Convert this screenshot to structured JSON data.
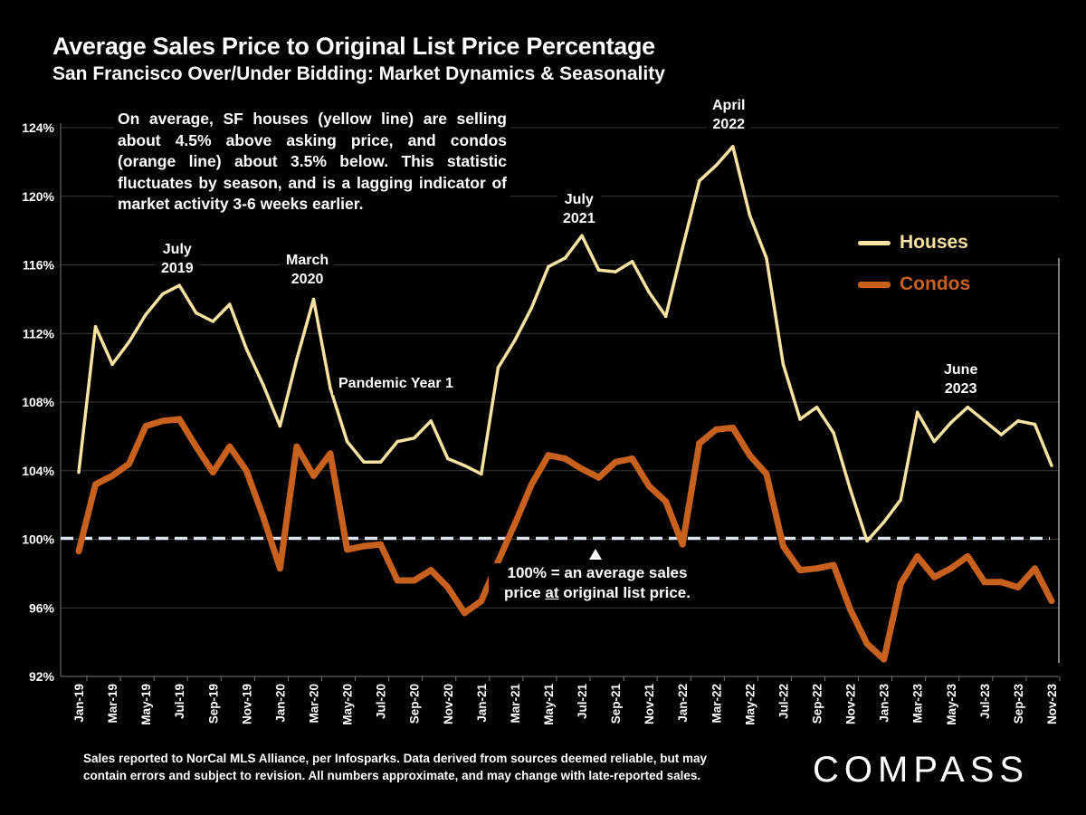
{
  "header": {
    "title": "Average Sales Price to Original List Price Percentage",
    "subtitle": "San Francisco Over/Under Bidding: Market Dynamics & Seasonality"
  },
  "note": "On average, SF houses (yellow line) are selling about 4.5% above asking price, and condos (orange line) about 3.5% below. This statistic fluctuates by season, and is a lagging indicator of market activity 3-6 weeks earlier.",
  "annotations": {
    "july2019": [
      "July",
      "2019"
    ],
    "march2020": [
      "March",
      "2020"
    ],
    "pandemic": "Pandemic Year 1",
    "july2021": [
      "July",
      "2021"
    ],
    "april2022": [
      "April",
      "2022"
    ],
    "june2023": [
      "June",
      "2023"
    ],
    "baseline_line1": "100% = an average sales",
    "baseline_pre": "price ",
    "baseline_at": "at",
    "baseline_post": " original list price."
  },
  "footer": {
    "line1": "Sales reported to NorCal MLS Alliance, per Infosparks. Data derived from sources deemed reliable, but may",
    "line2": "contain errors and subject to revision. All numbers approximate, and may change with late-reported sales."
  },
  "logo": "COMPASS",
  "colors": {
    "houses": "#F9E2A2",
    "condos": "#C8601E",
    "grid": "#3a3a3a",
    "baseline": "#DDE3EE"
  },
  "chart_data": {
    "type": "line",
    "title": "Average Sales Price to Original List Price Percentage",
    "ylabel": "",
    "xlabel": "",
    "ylim": [
      92,
      124
    ],
    "yticks": [
      92,
      96,
      100,
      104,
      108,
      112,
      116,
      120,
      124
    ],
    "ytick_labels": [
      "92%",
      "96%",
      "100%",
      "104%",
      "108%",
      "112%",
      "116%",
      "120%",
      "124%"
    ],
    "grid": true,
    "legend_position": "right",
    "reference_line": 100,
    "x": [
      "Jan-19",
      "Feb-19",
      "Mar-19",
      "Apr-19",
      "May-19",
      "Jun-19",
      "Jul-19",
      "Aug-19",
      "Sep-19",
      "Oct-19",
      "Nov-19",
      "Dec-19",
      "Jan-20",
      "Feb-20",
      "Mar-20",
      "Apr-20",
      "May-20",
      "Jun-20",
      "Jul-20",
      "Aug-20",
      "Sep-20",
      "Oct-20",
      "Nov-20",
      "Dec-20",
      "Jan-21",
      "Feb-21",
      "Mar-21",
      "Apr-21",
      "May-21",
      "Jun-21",
      "Jul-21",
      "Aug-21",
      "Sep-21",
      "Oct-21",
      "Nov-21",
      "Dec-21",
      "Jan-22",
      "Feb-22",
      "Mar-22",
      "Apr-22",
      "May-22",
      "Jun-22",
      "Jul-22",
      "Aug-22",
      "Sep-22",
      "Oct-22",
      "Nov-22",
      "Dec-22",
      "Jan-23",
      "Feb-23",
      "Mar-23",
      "Apr-23",
      "May-23",
      "Jun-23",
      "Jul-23",
      "Aug-23",
      "Sep-23",
      "Oct-23",
      "Nov-23"
    ],
    "xtick_labels": [
      "Jan-19",
      "Mar-19",
      "May-19",
      "Jul-19",
      "Sep-19",
      "Nov-19",
      "Jan-20",
      "Mar-20",
      "May-20",
      "Jul-20",
      "Sep-20",
      "Nov-20",
      "Jan-21",
      "Mar-21",
      "May-21",
      "Jul-21",
      "Sep-21",
      "Nov-21",
      "Jan-22",
      "Mar-22",
      "May-22",
      "Jul-22",
      "Sep-22",
      "Nov-22",
      "Jan-23",
      "Mar-23",
      "May-23",
      "Jul-23",
      "Sep-23",
      "Nov-23"
    ],
    "series": [
      {
        "name": "Houses",
        "values": [
          103.9,
          112.4,
          110.2,
          111.5,
          113.1,
          114.3,
          114.8,
          113.2,
          112.7,
          113.7,
          111.1,
          109.0,
          106.6,
          110.5,
          114.0,
          108.8,
          105.7,
          104.5,
          104.5,
          105.7,
          105.9,
          106.9,
          104.7,
          104.3,
          103.8,
          110.0,
          111.6,
          113.5,
          115.9,
          116.4,
          117.7,
          115.7,
          115.6,
          116.2,
          114.4,
          113.0,
          117.0,
          120.9,
          121.8,
          122.9,
          118.9,
          116.4,
          110.2,
          107.0,
          107.7,
          106.2,
          102.9,
          99.9,
          101.0,
          102.3,
          107.4,
          105.7,
          106.8,
          107.7,
          106.9,
          106.1,
          106.9,
          106.7,
          104.3
        ]
      },
      {
        "name": "Condos",
        "values": [
          99.3,
          103.2,
          103.7,
          104.4,
          106.6,
          106.9,
          107.0,
          105.4,
          103.9,
          105.4,
          104.0,
          101.3,
          98.3,
          105.4,
          103.7,
          105.0,
          99.4,
          99.6,
          99.7,
          97.6,
          97.6,
          98.2,
          97.2,
          95.7,
          96.4,
          98.7,
          100.9,
          103.2,
          104.9,
          104.7,
          104.1,
          103.6,
          104.5,
          104.7,
          103.1,
          102.2,
          99.7,
          105.6,
          106.4,
          106.5,
          104.9,
          103.8,
          99.6,
          98.2,
          98.3,
          98.5,
          95.9,
          93.9,
          93.0,
          97.4,
          99.0,
          97.8,
          98.3,
          99.0,
          97.5,
          97.5,
          97.2,
          98.3,
          96.4
        ]
      }
    ]
  }
}
